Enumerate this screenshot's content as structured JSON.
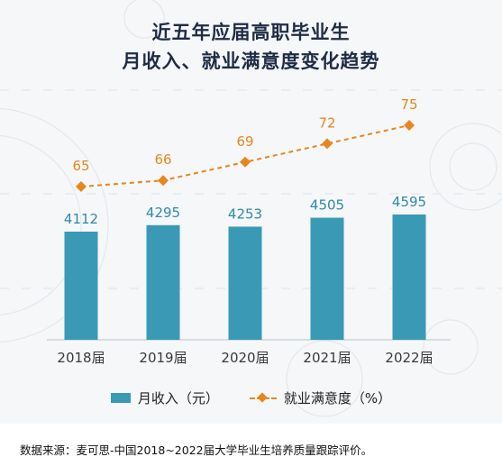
{
  "title_line1": "近五年应届高职毕业生",
  "title_line2": "月收入、就业满意度变化趋势",
  "source": "数据来源：麦可思-中国2018~2022届大学毕业生培养质量跟踪评价。",
  "colors": {
    "bar": "#3a9ab5",
    "bar_label": "#2f8aa8",
    "line": "#e8861e",
    "title": "#1f2c44"
  },
  "chart_data": {
    "type": "bar",
    "categories": [
      "2018届",
      "2019届",
      "2020届",
      "2021届",
      "2022届"
    ],
    "series": [
      {
        "name": "月收入（元）",
        "type": "bar",
        "values": [
          4112,
          4295,
          4253,
          4505,
          4595
        ]
      },
      {
        "name": "就业满意度（%）",
        "type": "line",
        "values": [
          65,
          66,
          69,
          72,
          75
        ]
      }
    ],
    "legend": "bottom",
    "grid": false
  }
}
